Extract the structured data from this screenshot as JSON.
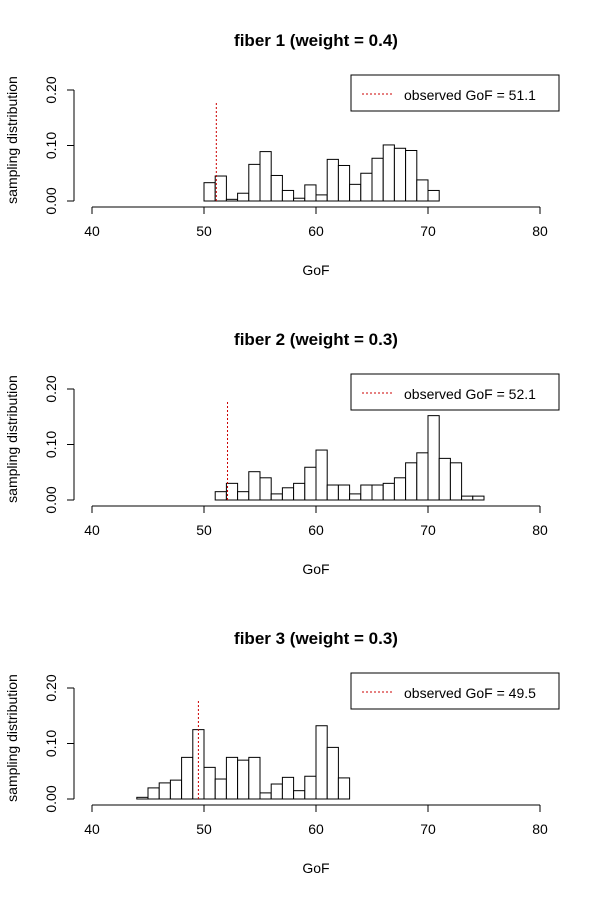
{
  "chart_data": [
    {
      "type": "bar",
      "title": "fiber 1 (weight = 0.4)",
      "xlabel": "GoF",
      "ylabel": "sampling distribution",
      "xlim": [
        40,
        80
      ],
      "ylim": [
        0,
        0.2
      ],
      "xticks": [
        "40",
        "50",
        "60",
        "70",
        "80"
      ],
      "yticks": [
        "0.00",
        "0.10",
        "0.20"
      ],
      "bin_width": 1,
      "bin_start": 50,
      "values": [
        0.033,
        0.045,
        0.003,
        0.014,
        0.066,
        0.089,
        0.046,
        0.019,
        0.005,
        0.029,
        0.011,
        0.075,
        0.064,
        0.03,
        0.05,
        0.077,
        0.101,
        0.095,
        0.091,
        0.038,
        0.019
      ],
      "observed": 51.1,
      "observed_color": "#cc0000",
      "legend_label": "observed GoF = 51.1",
      "legend_position": "top-right"
    },
    {
      "type": "bar",
      "title": "fiber 2 (weight = 0.3)",
      "xlabel": "GoF",
      "ylabel": "sampling distribution",
      "xlim": [
        40,
        80
      ],
      "ylim": [
        0,
        0.2
      ],
      "xticks": [
        "40",
        "50",
        "60",
        "70",
        "80"
      ],
      "yticks": [
        "0.00",
        "0.10",
        "0.20"
      ],
      "bin_width": 1,
      "bin_start": 51,
      "values": [
        0.015,
        0.03,
        0.015,
        0.051,
        0.04,
        0.011,
        0.022,
        0.03,
        0.059,
        0.09,
        0.027,
        0.027,
        0.011,
        0.027,
        0.027,
        0.03,
        0.04,
        0.067,
        0.085,
        0.152,
        0.075,
        0.067,
        0.007,
        0.007
      ],
      "observed": 52.1,
      "observed_color": "#cc0000",
      "legend_label": "observed GoF = 52.1",
      "legend_position": "top-right"
    },
    {
      "type": "bar",
      "title": "fiber 3 (weight = 0.3)",
      "xlabel": "GoF",
      "ylabel": "sampling distribution",
      "xlim": [
        40,
        80
      ],
      "ylim": [
        0,
        0.2
      ],
      "xticks": [
        "40",
        "50",
        "60",
        "70",
        "80"
      ],
      "yticks": [
        "0.00",
        "0.10",
        "0.20"
      ],
      "bin_width": 1,
      "bin_start": 44,
      "values": [
        0.003,
        0.02,
        0.029,
        0.034,
        0.075,
        0.125,
        0.057,
        0.036,
        0.075,
        0.07,
        0.075,
        0.011,
        0.027,
        0.039,
        0.015,
        0.041,
        0.132,
        0.093,
        0.038
      ],
      "observed": 49.5,
      "observed_color": "#cc0000",
      "legend_label": "observed GoF = 49.5",
      "legend_position": "top-right"
    }
  ]
}
